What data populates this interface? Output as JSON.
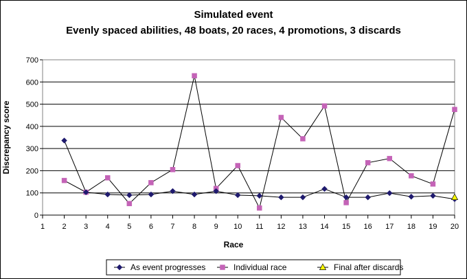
{
  "chart_data": {
    "type": "line",
    "title": "Simulated event",
    "subtitle": "Evenly spaced abilities, 48 boats, 20 races, 4 promotions, 3 discards",
    "xlabel": "Race",
    "ylabel": "Discrepancy score",
    "x": [
      1,
      2,
      3,
      4,
      5,
      6,
      7,
      8,
      9,
      10,
      11,
      12,
      13,
      14,
      15,
      16,
      17,
      18,
      19,
      20
    ],
    "x_tick_labels": [
      "1",
      "2",
      "3",
      "4",
      "5",
      "6",
      "7",
      "8",
      "9",
      "10",
      "11",
      "12",
      "13",
      "14",
      "15",
      "16",
      "17",
      "18",
      "19",
      "20"
    ],
    "xlim": [
      1,
      20
    ],
    "ylim": [
      0,
      700
    ],
    "y_ticks": [
      0,
      100,
      200,
      300,
      400,
      500,
      600,
      700
    ],
    "grid": true,
    "legend_position": "bottom",
    "series": [
      {
        "name": "As event progresses",
        "marker": "diamond",
        "color": "#1f1a6e",
        "x": [
          2,
          3,
          4,
          5,
          6,
          7,
          8,
          9,
          10,
          11,
          12,
          13,
          14,
          15,
          16,
          17,
          18,
          19,
          20
        ],
        "values": [
          336,
          103,
          93,
          90,
          93,
          108,
          93,
          108,
          90,
          87,
          80,
          80,
          118,
          80,
          80,
          99,
          83,
          87,
          72
        ]
      },
      {
        "name": "Individual race",
        "marker": "square",
        "color": "#c463b7",
        "x": [
          2,
          3,
          4,
          5,
          6,
          7,
          8,
          9,
          10,
          11,
          12,
          13,
          14,
          15,
          16,
          17,
          18,
          19,
          20
        ],
        "values": [
          156,
          103,
          168,
          52,
          146,
          205,
          628,
          120,
          223,
          32,
          440,
          344,
          492,
          56,
          236,
          255,
          177,
          140,
          476
        ]
      },
      {
        "name": "Final after discards",
        "marker": "triangle",
        "color": "#ffff00",
        "x": [
          20
        ],
        "values": [
          80
        ]
      }
    ]
  }
}
